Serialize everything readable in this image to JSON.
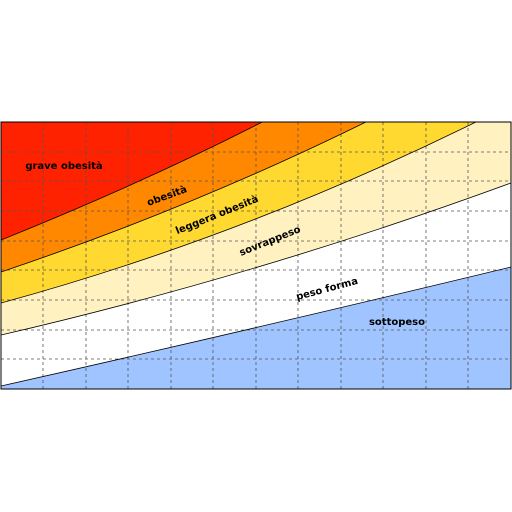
{
  "zones": [
    {
      "label": "grave obesità"
    },
    {
      "label": "obesità"
    },
    {
      "label": "leggera obesità"
    },
    {
      "label": "sovrappeso"
    },
    {
      "label": "peso forma"
    },
    {
      "label": "sottopeso"
    }
  ]
}
